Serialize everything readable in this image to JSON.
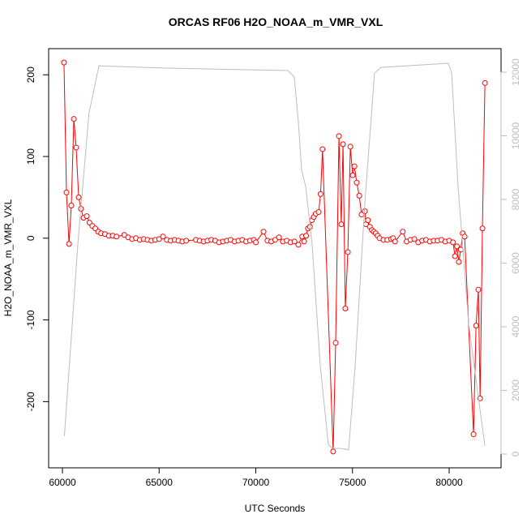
{
  "chart_data": {
    "type": "line",
    "title": "ORCAS RF06 H2O_NOAA_m_VMR_VXL",
    "x_label": "UTC Seconds",
    "y_label": "H2O_NOAA_m_VMR_VXL",
    "xlim": [
      59287,
      82683
    ],
    "ylim": [
      -281,
      232
    ],
    "y2lim": [
      -433,
      12739
    ],
    "xticks": [
      60000,
      65000,
      70000,
      75000,
      80000
    ],
    "yticks": [
      -200,
      -100,
      0,
      100,
      200
    ],
    "y2ticks": [
      0,
      2000,
      4000,
      6000,
      8000,
      10000,
      12000
    ],
    "series": [
      {
        "color": "#ff0000",
        "markers": true,
        "x": [
          60080,
          60210,
          60340,
          60460,
          60590,
          60710,
          60840,
          60960,
          61090,
          61260,
          61400,
          61550,
          61700,
          61850,
          62000,
          62200,
          62400,
          62600,
          62800,
          63200,
          63400,
          63600,
          63800,
          64000,
          64200,
          64400,
          64600,
          64800,
          65000,
          65200,
          65400,
          65600,
          65800,
          66000,
          66200,
          66400,
          66900,
          67100,
          67300,
          67500,
          67700,
          67900,
          68100,
          68300,
          68500,
          68700,
          68900,
          69100,
          69300,
          69500,
          69700,
          69900,
          70000,
          70400,
          70600,
          70800,
          71000,
          71200,
          71400,
          71600,
          71800,
          72000,
          72200,
          72400,
          72500,
          72600,
          72700,
          72800,
          72900,
          73000,
          73100,
          73250,
          73350,
          73450,
          74000,
          74130,
          74300,
          74420,
          74510,
          74630,
          74760,
          74890,
          75010,
          75100,
          75220,
          75350,
          75470,
          75640,
          75700,
          75800,
          75900,
          76000,
          76100,
          76200,
          76300,
          76400,
          76600,
          76800,
          77000,
          77100,
          77200,
          77600,
          77800,
          78000,
          78200,
          78400,
          78600,
          78800,
          79000,
          79200,
          79400,
          79600,
          79800,
          80000,
          80200,
          80300,
          80400,
          80500,
          80600,
          80700,
          80800,
          81260,
          81390,
          81510,
          81600,
          81720,
          81850
        ],
        "values": [
          215,
          56,
          -7,
          40,
          146,
          111,
          50,
          36,
          25,
          27,
          19,
          15,
          12,
          8,
          6,
          5,
          3,
          3,
          2,
          4,
          1,
          -1,
          0,
          -2,
          -1,
          -2,
          -3,
          -2,
          -1,
          2,
          -2,
          -3,
          -2,
          -3,
          -4,
          -3,
          -2,
          -3,
          -4,
          -3,
          -2,
          -3,
          -5,
          -4,
          -3,
          -2,
          -4,
          -3,
          -2,
          -4,
          -3,
          -2,
          -5,
          8,
          -3,
          -4,
          -2,
          1,
          -4,
          -3,
          -5,
          -4,
          -8,
          2,
          -4,
          3,
          12,
          14,
          22,
          26,
          30,
          32,
          54,
          109,
          -261,
          -128,
          125,
          17,
          115,
          -86,
          -17,
          112,
          77,
          88,
          68,
          52,
          29,
          33,
          17,
          22,
          14,
          10,
          8,
          6,
          3,
          0,
          -2,
          -2,
          -1,
          0,
          -4,
          8,
          -4,
          -2,
          -1,
          -5,
          -3,
          -2,
          -4,
          -3,
          -3,
          -2,
          -4,
          -3,
          -5,
          -22,
          -10,
          -29,
          -14,
          6,
          2,
          -240,
          -107,
          -63,
          -196,
          12,
          190
        ]
      },
      {
        "color": "#bebebe",
        "axis": "y2",
        "markers": false,
        "x": [
          60100,
          60800,
          61370,
          61890,
          65160,
          71660,
          71990,
          72200,
          72370,
          72580,
          72910,
          73330,
          73750,
          73960,
          74380,
          74800,
          75140,
          75640,
          76140,
          76480,
          79960,
          80130,
          80460,
          81010,
          81510,
          81850
        ],
        "values": [
          560,
          6620,
          10700,
          12200,
          12130,
          12050,
          11850,
          10450,
          8920,
          8410,
          6620,
          2800,
          300,
          180,
          180,
          130,
          2800,
          7900,
          11970,
          12150,
          12280,
          11970,
          8410,
          4080,
          1780,
          250
        ]
      }
    ]
  }
}
